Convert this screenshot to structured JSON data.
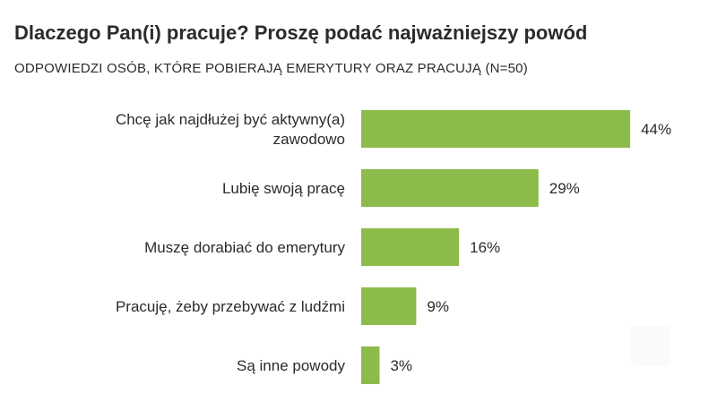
{
  "header": {
    "title": "Dlaczego Pan(i) pracuje? Proszę podać najważniejszy powód",
    "subtitle": "ODPOWIEDZI OSÓB, KTÓRE POBIERAJĄ EMERYTURY ORAZ PRACUJĄ (N=50)"
  },
  "chart_data": {
    "type": "bar",
    "orientation": "horizontal",
    "title": "Dlaczego Pan(i) pracuje? Proszę podać najważniejszy powód",
    "subtitle": "ODPOWIEDZI OSÓB, KTÓRE POBIERAJĄ EMERYTURY ORAZ PRACUJĄ (N=50)",
    "categories": [
      [
        "Chcę jak najdłużej być aktywny(a)",
        "zawodowo"
      ],
      [
        "Lubię swoją pracę"
      ],
      [
        "Muszę dorabiać do emerytury"
      ],
      [
        "Pracuję, żeby przebywać z ludźmi"
      ],
      [
        "Są inne powody"
      ]
    ],
    "values": [
      44,
      29,
      16,
      9,
      3
    ],
    "value_labels": [
      "44%",
      "29%",
      "16%",
      "9%",
      "3%"
    ],
    "unit": "%",
    "bar_color": "#8dbb4b",
    "grid": false,
    "legend": "none"
  },
  "colors": {
    "bar": "#8dbb4b",
    "text": "#2b2b2b"
  }
}
